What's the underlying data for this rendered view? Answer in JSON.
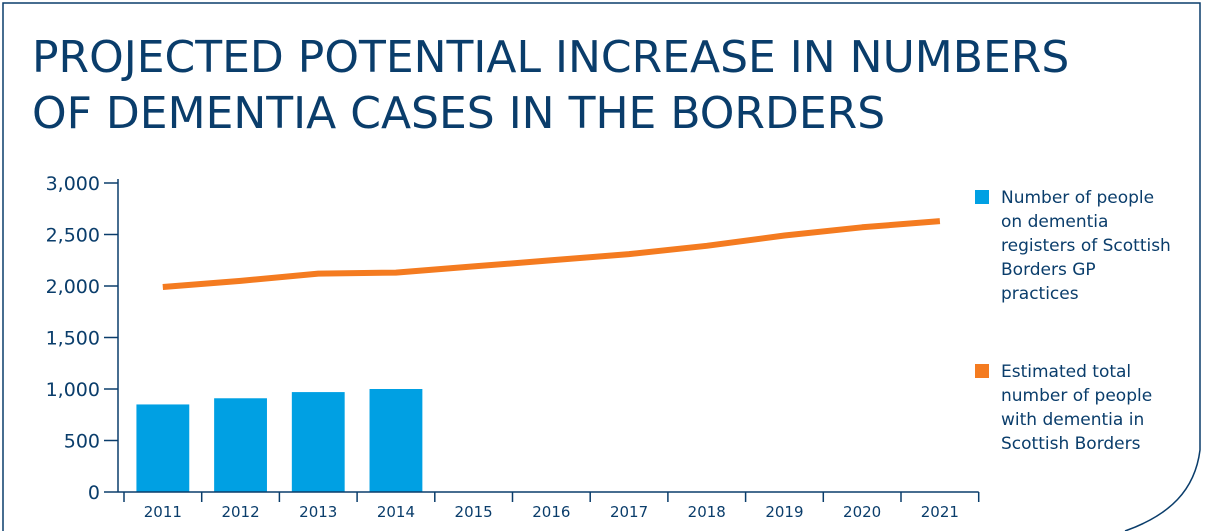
{
  "title_lines": [
    "PROJECTED POTENTIAL INCREASE IN NUMBERS",
    "OF DEMENTIA CASES IN THE BORDERS"
  ],
  "colors": {
    "bar": "#00a0e3",
    "line": "#f47b20",
    "axis": "#0a3d6b",
    "frame": "#0a3d6b"
  },
  "chart_data": {
    "type": "bar",
    "title": "PROJECTED POTENTIAL INCREASE IN NUMBERS OF DEMENTIA CASES IN THE BORDERS",
    "xlabel": "",
    "ylabel": "",
    "categories": [
      "2011",
      "2012",
      "2013",
      "2014",
      "2015",
      "2016",
      "2017",
      "2018",
      "2019",
      "2020",
      "2021"
    ],
    "ylim": [
      0,
      3000
    ],
    "yticks": [
      0,
      500,
      1000,
      1500,
      2000,
      2500,
      3000
    ],
    "ytick_labels": [
      "0",
      "500",
      "1,000",
      "1,500",
      "2,000",
      "2,500",
      "3,000"
    ],
    "grid": false,
    "legend_position": "right",
    "series": [
      {
        "name": "Number of people on dementia registers of Scottish Borders GP practices",
        "type": "bar",
        "color": "#00a0e3",
        "values": [
          850,
          910,
          970,
          1000,
          null,
          null,
          null,
          null,
          null,
          null,
          null
        ]
      },
      {
        "name": "Estimated total number of people with dementia in Scottish Borders",
        "type": "line",
        "color": "#f47b20",
        "values": [
          1990,
          2050,
          2120,
          2130,
          2190,
          2250,
          2310,
          2390,
          2490,
          2570,
          2630
        ]
      }
    ]
  }
}
